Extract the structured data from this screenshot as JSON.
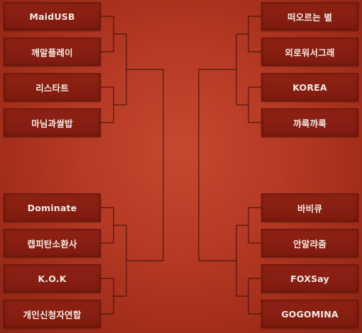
{
  "bracket": {
    "left_top": [
      "MaidUSB",
      "깨알플레이",
      "리스타트",
      "마님과쌀밥"
    ],
    "left_bottom": [
      "Dominate",
      "캡피탄소환사",
      "K.O.K",
      "개인신청자연합"
    ],
    "right_top": [
      "떠오르는 별",
      "외로워서그래",
      "KOREA",
      "꺄룩꺄룩"
    ],
    "right_bottom": [
      "바비큐",
      "안알랴줌",
      "FOXSay",
      "GOGOMINA"
    ]
  }
}
